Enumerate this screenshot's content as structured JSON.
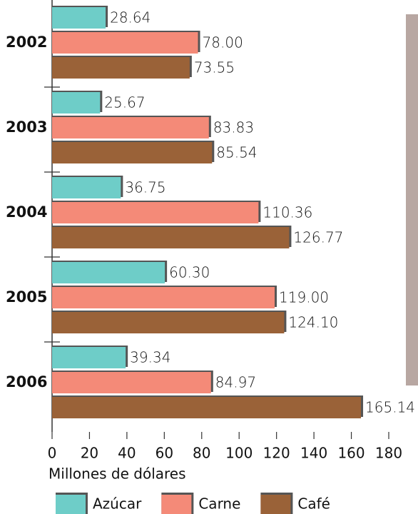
{
  "chart_data": {
    "type": "bar",
    "orientation": "horizontal",
    "categories": [
      "2002",
      "2003",
      "2004",
      "2005",
      "2006"
    ],
    "series": [
      {
        "name": "Azúcar",
        "color": "#6ecdc8",
        "values": [
          28.64,
          25.67,
          36.75,
          60.3,
          39.34
        ],
        "value_labels": [
          "28.64",
          "25.67",
          "36.75",
          "60.30",
          "39.34"
        ]
      },
      {
        "name": "Carne",
        "color": "#f48a78",
        "values": [
          78.0,
          83.83,
          110.36,
          119.0,
          84.97
        ],
        "value_labels": [
          "78.00",
          "83.83",
          "110.36",
          "119.00",
          "84.97"
        ]
      },
      {
        "name": "Café",
        "color": "#9a6238",
        "values": [
          73.55,
          85.54,
          126.77,
          124.1,
          165.14
        ],
        "value_labels": [
          "73.55",
          "85.54",
          "126.77",
          "124.10",
          "165.14"
        ]
      }
    ],
    "xlabel": "Millones de dólares",
    "xlim": [
      0,
      180
    ],
    "xticks": [
      0,
      20,
      40,
      60,
      80,
      100,
      120,
      140,
      160,
      180
    ]
  }
}
